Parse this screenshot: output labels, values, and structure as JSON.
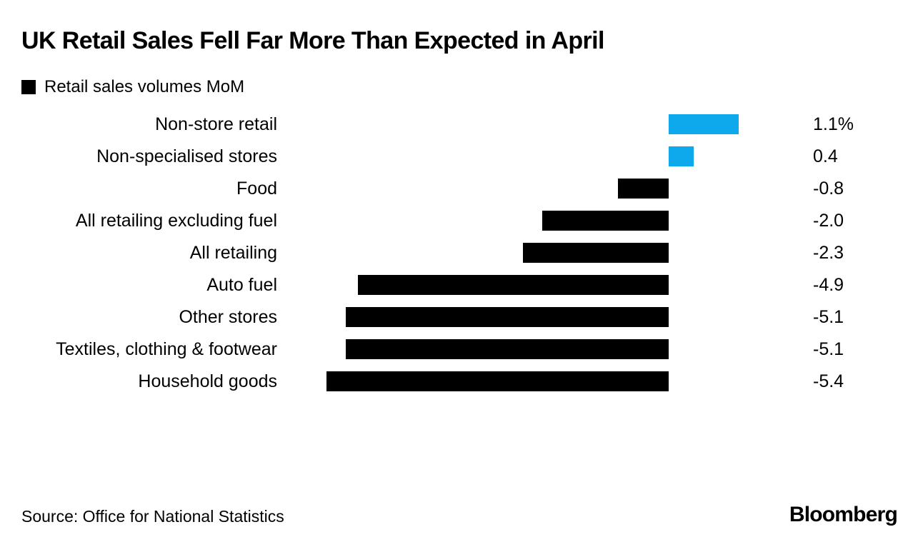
{
  "header": {
    "title": "UK Retail Sales Fell Far More Than Expected in April"
  },
  "legend": {
    "label": "Retail sales volumes MoM",
    "swatch_color": "#000000"
  },
  "chart_data": {
    "type": "bar",
    "orientation": "horizontal",
    "title": "UK Retail Sales Fell Far More Than Expected in April",
    "series_name": "Retail sales volumes MoM",
    "categories": [
      "Non-store retail",
      "Non-specialised stores",
      "Food",
      "All retailing excluding fuel",
      "All retailing",
      "Auto fuel",
      "Other stores",
      "Textiles, clothing & footwear",
      "Household goods"
    ],
    "values": [
      1.1,
      0.4,
      -0.8,
      -2.0,
      -2.3,
      -4.9,
      -5.1,
      -5.1,
      -5.4
    ],
    "value_labels": [
      "1.1%",
      "0.4",
      "-0.8",
      "-2.0",
      "-2.3",
      "-4.9",
      "-5.1",
      "-5.1",
      "-5.4"
    ],
    "unit": "%",
    "xlim": [
      -5.4,
      1.1
    ],
    "grid": false,
    "legend_position": "top-left",
    "positive_color": "#0ea8ec",
    "negative_color": "#000000"
  },
  "footer": {
    "source": "Source: Office for National Statistics",
    "brand": "Bloomberg"
  }
}
